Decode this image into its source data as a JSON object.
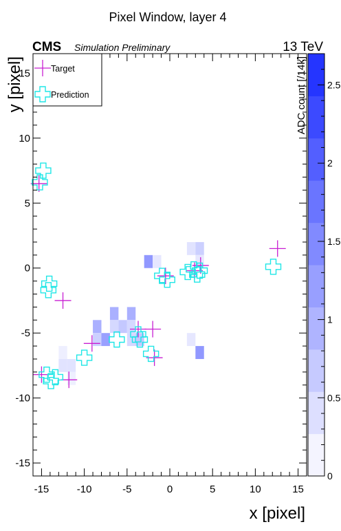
{
  "chart_data": {
    "type": "heatmap",
    "title": "Pixel Window, layer 4",
    "experiment": "CMS",
    "status": "Simulation Preliminary",
    "energy": "13 TeV",
    "xlabel": "x [pixel]",
    "ylabel": "y [pixel]",
    "zlabel": "ADC count [/14k]",
    "xlim": [
      -16,
      16
    ],
    "ylim": [
      -16,
      16.5
    ],
    "zlim": [
      0,
      2.7
    ],
    "x_ticks": [
      -15,
      -10,
      -5,
      0,
      5,
      10,
      15
    ],
    "y_ticks": [
      -15,
      -10,
      -5,
      0,
      5,
      10,
      15
    ],
    "z_ticks": [
      0,
      0.5,
      1,
      1.5,
      2,
      2.5
    ],
    "legend": {
      "position": "top-left",
      "entries": [
        {
          "label": "Target",
          "marker": "plus",
          "color": "#c81ed2"
        },
        {
          "label": "Prediction",
          "marker": "open-cross",
          "color": "#1ee6e6"
        }
      ]
    },
    "colors": {
      "zmax": "#1a2aff",
      "target": "#c81ed2",
      "prediction": "#1ee6e6"
    },
    "cells": [
      {
        "x": -12.5,
        "y": -6.5,
        "z": 0.2
      },
      {
        "x": -12.5,
        "y": -7.5,
        "z": 0.35
      },
      {
        "x": -11.5,
        "y": -7.5,
        "z": 0.35
      },
      {
        "x": -11.5,
        "y": -8.5,
        "z": 0.2
      },
      {
        "x": -8.5,
        "y": -4.5,
        "z": 1.0
      },
      {
        "x": -8.5,
        "y": -5.5,
        "z": 0.6
      },
      {
        "x": -7.5,
        "y": -5.5,
        "z": 1.2
      },
      {
        "x": -6.5,
        "y": -3.5,
        "z": 1.0
      },
      {
        "x": -6.5,
        "y": -4.5,
        "z": 0.5
      },
      {
        "x": -5.5,
        "y": -4.5,
        "z": 0.7
      },
      {
        "x": -4.5,
        "y": -3.5,
        "z": 1.0
      },
      {
        "x": -4.5,
        "y": -4.5,
        "z": 0.5
      },
      {
        "x": -4.5,
        "y": -5.5,
        "z": 0.5
      },
      {
        "x": -3.5,
        "y": -5.5,
        "z": 0.7
      },
      {
        "x": -2.5,
        "y": 0.5,
        "z": 1.3
      },
      {
        "x": -1.5,
        "y": 0.5,
        "z": 0.3
      },
      {
        "x": 2.5,
        "y": 1.5,
        "z": 0.35
      },
      {
        "x": 3.5,
        "y": 1.5,
        "z": 0.6
      },
      {
        "x": 3.5,
        "y": 0.5,
        "z": 0.3
      },
      {
        "x": 2.5,
        "y": -5.5,
        "z": 0.3
      },
      {
        "x": 3.5,
        "y": -6.5,
        "z": 1.3
      }
    ],
    "target_points": [
      {
        "x": -15.3,
        "y": 6.5
      },
      {
        "x": -12.5,
        "y": -2.5
      },
      {
        "x": -15.0,
        "y": -8.2
      },
      {
        "x": -11.8,
        "y": -8.6
      },
      {
        "x": -9.1,
        "y": -5.8
      },
      {
        "x": -3.7,
        "y": -4.7
      },
      {
        "x": -2.0,
        "y": -4.7
      },
      {
        "x": -1.8,
        "y": -6.9
      },
      {
        "x": 3.6,
        "y": 0.2
      },
      {
        "x": 12.6,
        "y": 1.5
      },
      {
        "x": -0.5,
        "y": -0.6
      },
      {
        "x": 2.9,
        "y": -0.2
      }
    ],
    "prediction_points": [
      {
        "x": -14.8,
        "y": 7.5
      },
      {
        "x": -15.2,
        "y": 6.6
      },
      {
        "x": -14.1,
        "y": -1.2
      },
      {
        "x": -14.2,
        "y": -1.7
      },
      {
        "x": -14.4,
        "y": -8.2
      },
      {
        "x": -13.9,
        "y": -8.7
      },
      {
        "x": -13.4,
        "y": -8.4
      },
      {
        "x": -10.0,
        "y": -6.9
      },
      {
        "x": -6.2,
        "y": -5.5
      },
      {
        "x": -3.7,
        "y": -5.1
      },
      {
        "x": -3.5,
        "y": -5.5
      },
      {
        "x": -2.2,
        "y": -6.6
      },
      {
        "x": -0.9,
        "y": -0.6
      },
      {
        "x": -0.3,
        "y": -0.9
      },
      {
        "x": 2.1,
        "y": -0.3
      },
      {
        "x": 2.8,
        "y": -0.1
      },
      {
        "x": 3.2,
        "y": -0.5
      },
      {
        "x": 3.5,
        "y": -0.2
      },
      {
        "x": 12.1,
        "y": 0.1
      }
    ]
  }
}
